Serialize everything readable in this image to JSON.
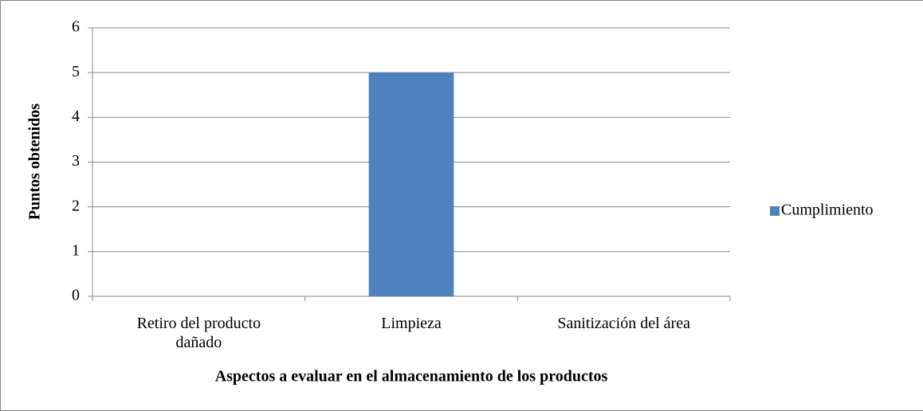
{
  "chart_data": {
    "type": "bar",
    "categories": [
      "Retiro del producto dañado",
      "Limpieza",
      "Sanitización del área"
    ],
    "series": [
      {
        "name": "Cumplimiento",
        "color": "#4f81bd",
        "values": [
          0,
          5,
          0
        ]
      }
    ],
    "ylim": [
      0,
      6
    ],
    "yticks": [
      0,
      1,
      2,
      3,
      4,
      5,
      6
    ],
    "grid": true,
    "ylabel": "Puntos obtenidos",
    "xlabel": "Aspectos a evaluar en el almacenamiento de los productos",
    "legend": "right"
  }
}
